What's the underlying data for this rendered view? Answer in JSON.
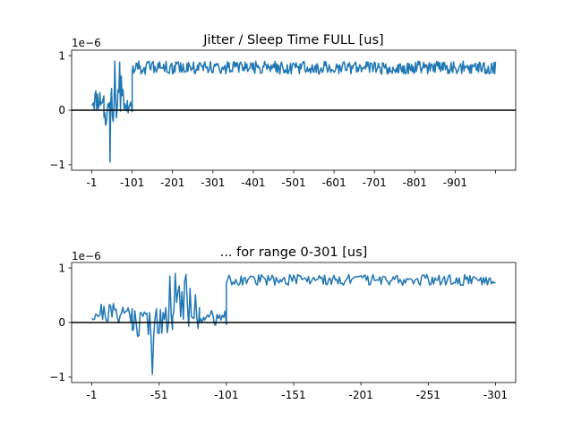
{
  "chart_data": [
    {
      "type": "line",
      "title": "Jitter / Sleep Time FULL [us]",
      "xlabel": "",
      "ylabel": "",
      "y_scale_label": "1e−6",
      "x_range": [
        -1,
        -1001
      ],
      "ylim": [
        -1.1,
        1.1
      ],
      "x_ticks": [
        -1,
        -101,
        -201,
        -301,
        -401,
        -501,
        -601,
        -701,
        -801,
        -901,
        -1001
      ],
      "x_tick_labels": [
        "-1",
        "-101",
        "-201",
        "-301",
        "-401",
        "-501",
        "-601",
        "-701",
        "-801",
        "-901",
        ""
      ],
      "y_ticks": [
        -1,
        0,
        1
      ],
      "y_tick_labels": [
        "−1",
        "0",
        "1"
      ],
      "zero_line": true,
      "grid": false,
      "series_color": "#1f77b4",
      "segments": [
        {
          "x_from": -1,
          "x_to": -31,
          "mean": 0.2,
          "amp": 0.22,
          "seed": 11
        },
        {
          "x_from": -31,
          "x_to": -46,
          "mean": 0.05,
          "amp": 0.35,
          "seed": 12
        },
        {
          "x_from": -46,
          "x_to": -81,
          "mean": 0.2,
          "amp": 0.45,
          "seed": 13
        },
        {
          "x_from": -81,
          "x_to": -101,
          "mean": 0.1,
          "amp": 0.18,
          "seed": 14
        },
        {
          "x_from": -101,
          "x_to": -1001,
          "mean": 0.78,
          "amp": 0.12,
          "seed": 15
        }
      ],
      "spikes": [
        {
          "x": -46,
          "y": -0.95
        },
        {
          "x": -59,
          "y": 0.9
        },
        {
          "x": -71,
          "y": 0.88
        },
        {
          "x": -117,
          "y": 0.9
        }
      ]
    },
    {
      "type": "line",
      "title": "... for range 0-301 [us]",
      "xlabel": "",
      "ylabel": "",
      "y_scale_label": "1e−6",
      "x_range": [
        -1,
        -301
      ],
      "ylim": [
        -1.1,
        1.1
      ],
      "x_ticks": [
        -1,
        -51,
        -101,
        -151,
        -201,
        -251,
        -301
      ],
      "x_tick_labels": [
        "-1",
        "-51",
        "-101",
        "-151",
        "-201",
        "-251",
        "-301"
      ],
      "y_ticks": [
        -1,
        0,
        1
      ],
      "y_tick_labels": [
        "−1",
        "0",
        "1"
      ],
      "zero_line": true,
      "grid": false,
      "series_color": "#1f77b4",
      "segments": [
        {
          "x_from": -1,
          "x_to": -31,
          "mean": 0.18,
          "amp": 0.2,
          "seed": 21
        },
        {
          "x_from": -31,
          "x_to": -61,
          "mean": 0.0,
          "amp": 0.28,
          "seed": 22
        },
        {
          "x_from": -61,
          "x_to": -81,
          "mean": 0.35,
          "amp": 0.5,
          "seed": 23
        },
        {
          "x_from": -81,
          "x_to": -101,
          "mean": 0.08,
          "amp": 0.15,
          "seed": 24
        },
        {
          "x_from": -101,
          "x_to": -301,
          "mean": 0.78,
          "amp": 0.1,
          "seed": 25
        }
      ],
      "spikes": [
        {
          "x": -46,
          "y": -0.95
        },
        {
          "x": -51,
          "y": -0.2
        },
        {
          "x": -59,
          "y": 0.85
        },
        {
          "x": -63,
          "y": 0.9
        },
        {
          "x": -71,
          "y": 0.88
        },
        {
          "x": -88,
          "y": 0.1
        }
      ]
    }
  ]
}
